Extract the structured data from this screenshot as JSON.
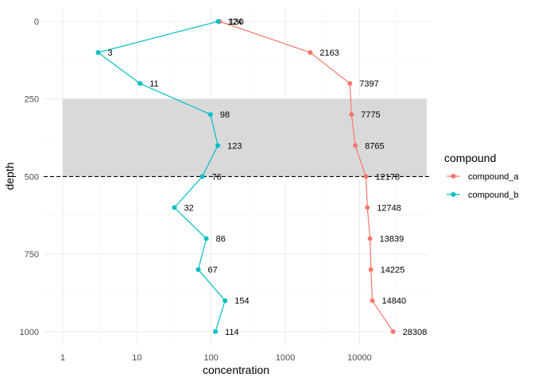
{
  "chart_data": {
    "type": "line",
    "xlabel": "concentration",
    "ylabel": "depth",
    "x_scale": "log10",
    "xlim": [
      1,
      50000
    ],
    "ylim": [
      1000,
      0
    ],
    "x_ticks": [
      {
        "value": 1,
        "label": "1"
      },
      {
        "value": 10,
        "label": "10"
      },
      {
        "value": 100,
        "label": "100"
      },
      {
        "value": 1000,
        "label": "1000"
      },
      {
        "value": 10000,
        "label": "10000"
      }
    ],
    "y_ticks": [
      {
        "value": 0,
        "label": "0"
      },
      {
        "value": 250,
        "label": "250"
      },
      {
        "value": 500,
        "label": "500"
      },
      {
        "value": 750,
        "label": "750"
      },
      {
        "value": 1000,
        "label": "1000"
      }
    ],
    "shaded_band": {
      "depth_from": 250,
      "depth_to": 500,
      "color": "#d9d9d9"
    },
    "reference_line": {
      "depth": 500,
      "style": "dashed",
      "color": "#000000"
    },
    "grid": true,
    "legend": {
      "title": "compound",
      "position": "right"
    },
    "series": [
      {
        "name": "compound_a",
        "color": "#F8766D",
        "points": [
          {
            "depth": 0,
            "concentration": 130,
            "label": "130"
          },
          {
            "depth": 100,
            "concentration": 2163,
            "label": "2163"
          },
          {
            "depth": 200,
            "concentration": 7397,
            "label": "7397"
          },
          {
            "depth": 300,
            "concentration": 7775,
            "label": "7775"
          },
          {
            "depth": 400,
            "concentration": 8765,
            "label": "8765"
          },
          {
            "depth": 500,
            "concentration": 12178,
            "label": "12178"
          },
          {
            "depth": 600,
            "concentration": 12748,
            "label": "12748"
          },
          {
            "depth": 700,
            "concentration": 13839,
            "label": "13839"
          },
          {
            "depth": 800,
            "concentration": 14225,
            "label": "14225"
          },
          {
            "depth": 900,
            "concentration": 14840,
            "label": "14840"
          },
          {
            "depth": 1000,
            "concentration": 28308,
            "label": "28308"
          }
        ]
      },
      {
        "name": "compound_b",
        "color": "#00BFC4",
        "points": [
          {
            "depth": 0,
            "concentration": 124,
            "label": "124"
          },
          {
            "depth": 100,
            "concentration": 3,
            "label": "3"
          },
          {
            "depth": 200,
            "concentration": 11,
            "label": "11"
          },
          {
            "depth": 300,
            "concentration": 98,
            "label": "98"
          },
          {
            "depth": 400,
            "concentration": 123,
            "label": "123"
          },
          {
            "depth": 500,
            "concentration": 76,
            "label": "76"
          },
          {
            "depth": 600,
            "concentration": 32,
            "label": "32"
          },
          {
            "depth": 700,
            "concentration": 86,
            "label": "86"
          },
          {
            "depth": 800,
            "concentration": 67,
            "label": "67"
          },
          {
            "depth": 900,
            "concentration": 154,
            "label": "154"
          },
          {
            "depth": 1000,
            "concentration": 114,
            "label": "114"
          }
        ]
      }
    ]
  }
}
